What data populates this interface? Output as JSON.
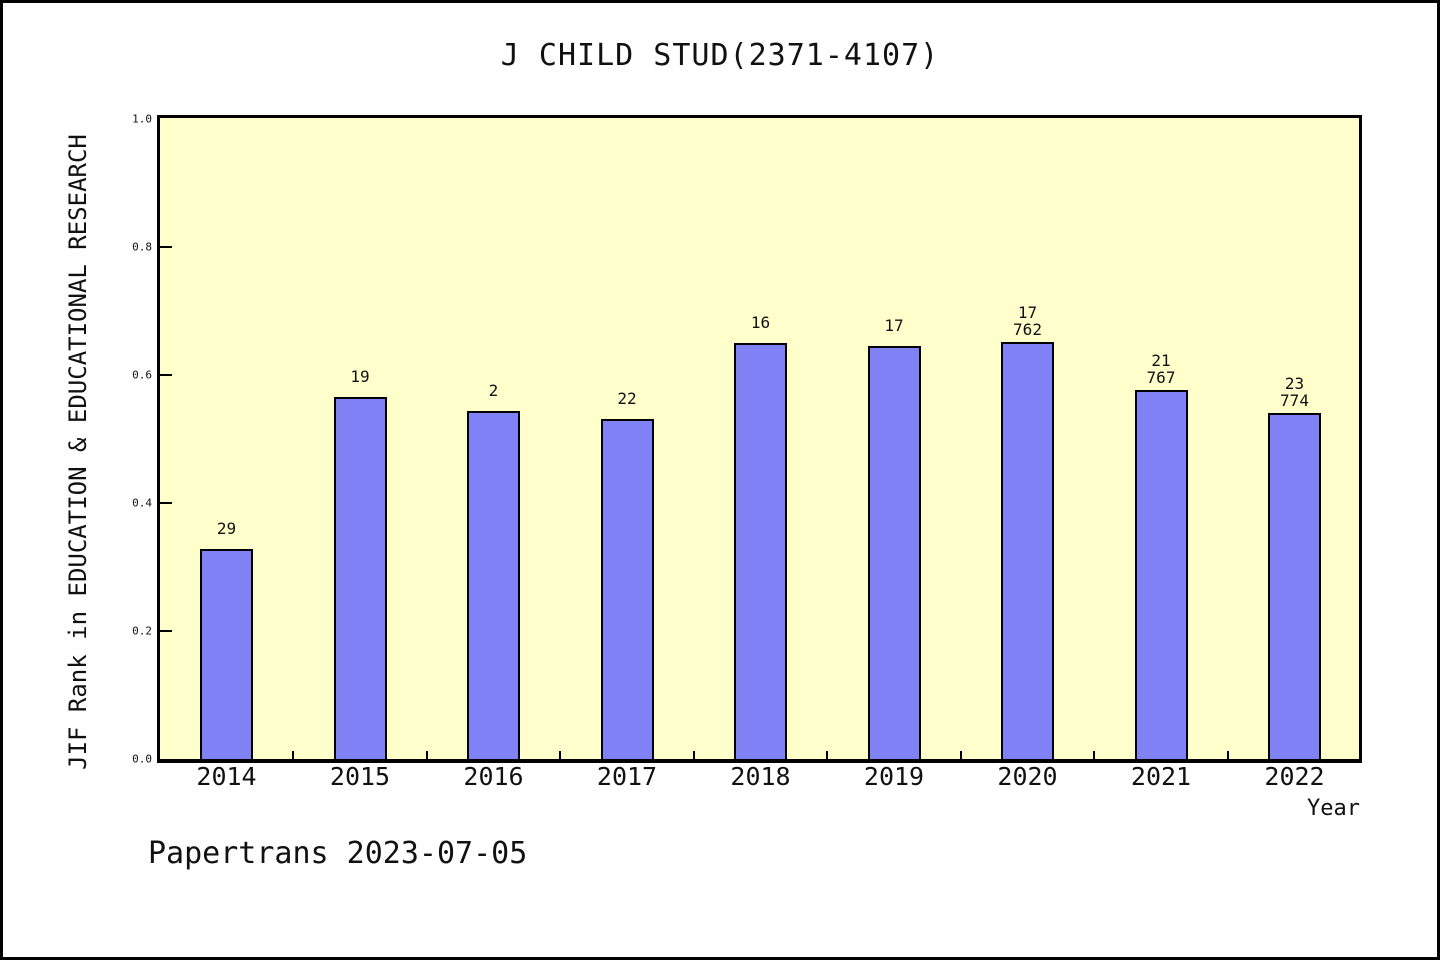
{
  "footer": {
    "text": "Papertrans 2023-07-05"
  },
  "chart_data": {
    "type": "bar",
    "title": "J CHILD STUD(2371-4107)",
    "xlabel": "Year",
    "ylabel": "JIF Rank in EDUCATION & EDUCATIONAL RESEARCH",
    "ylim": [
      0.0,
      1.0
    ],
    "yticks": [
      "0.0",
      "0.2",
      "0.4",
      "0.6",
      "0.8",
      "1.0"
    ],
    "grid": "off",
    "legend": "none",
    "categories": [
      "2014",
      "2015",
      "2016",
      "2017",
      "2018",
      "2019",
      "2020",
      "2021",
      "2022"
    ],
    "values": [
      0.328,
      0.566,
      0.544,
      0.531,
      0.65,
      0.645,
      0.652,
      0.577,
      0.541
    ],
    "bar_labels": [
      [
        "29"
      ],
      [
        "19"
      ],
      [
        "2"
      ],
      [
        "22"
      ],
      [
        "16"
      ],
      [
        "17"
      ],
      [
        "17",
        "762"
      ],
      [
        "21",
        "767"
      ],
      [
        "23",
        "774"
      ]
    ],
    "colors": {
      "bar": "#8181f6",
      "bar_border": "#000000",
      "plot_bg": "#ffffcc",
      "frame": "#000000",
      "text": "#111111"
    }
  }
}
